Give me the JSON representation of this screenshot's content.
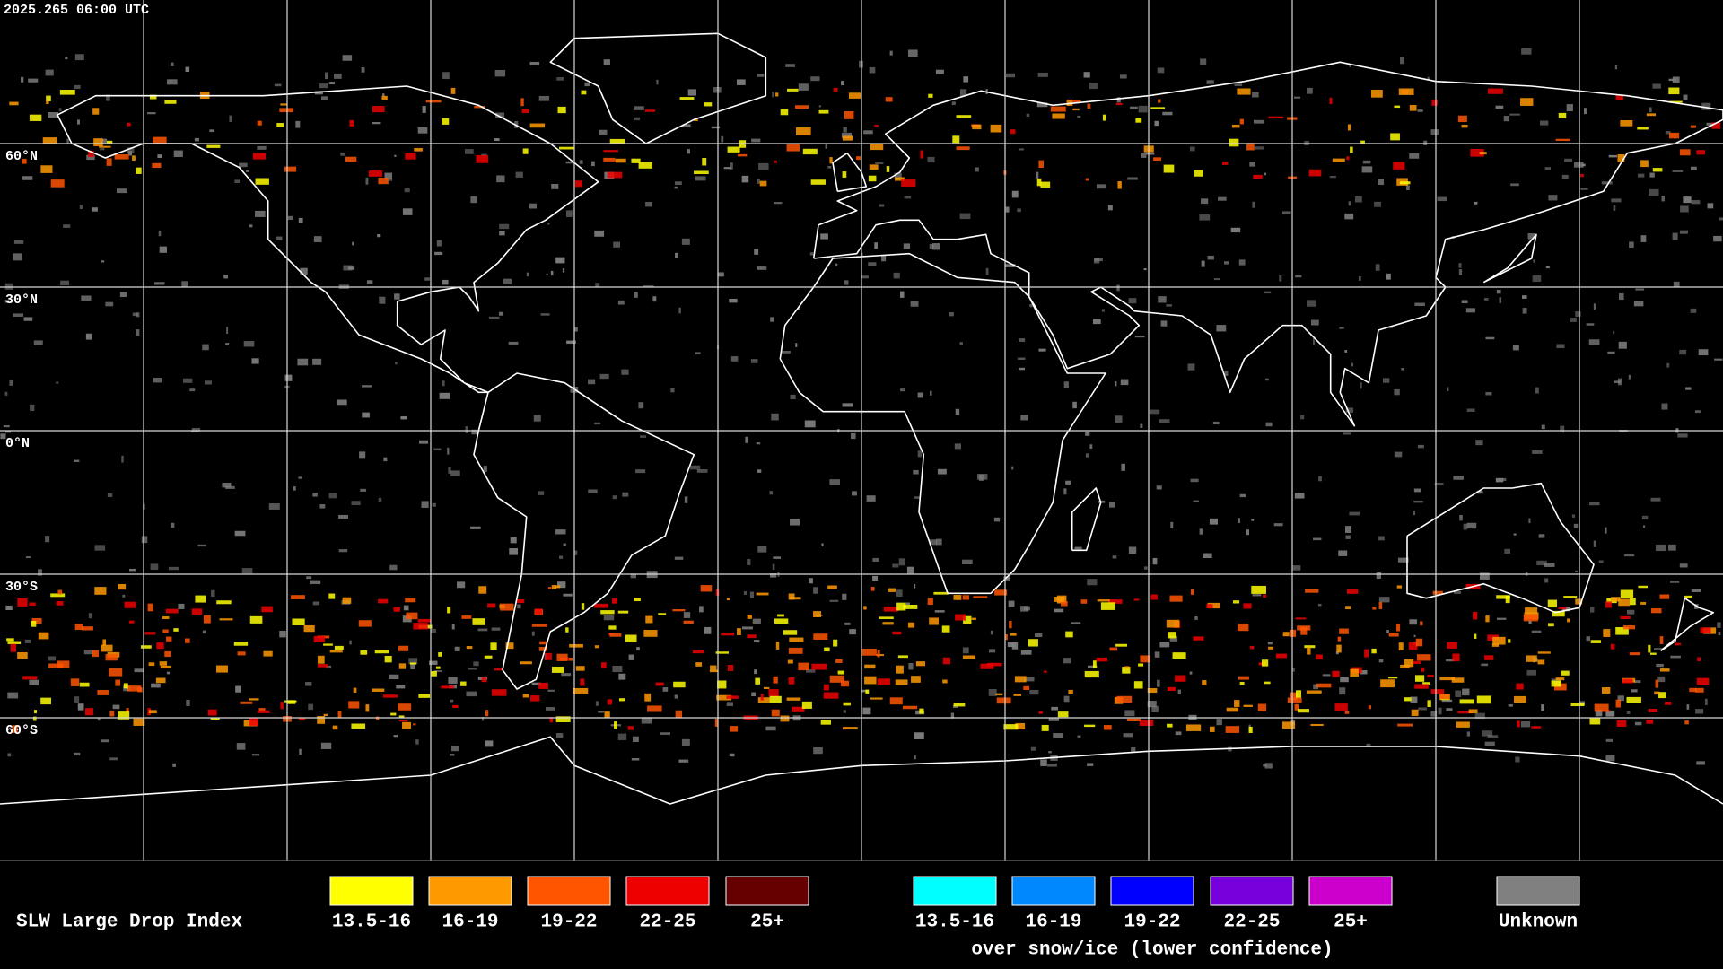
{
  "map": {
    "timestamp": "2025.265 06:00 UTC",
    "latitude_labels": [
      "60°N",
      "30°N",
      "0°N",
      "30°S",
      "60°S"
    ]
  },
  "legend": {
    "title": "SLW Large Drop Index",
    "groups": [
      {
        "items": [
          {
            "label": "13.5-16",
            "color": "#ffff00"
          },
          {
            "label": "16-19",
            "color": "#ff9900"
          },
          {
            "label": "19-22",
            "color": "#ff5500"
          },
          {
            "label": "22-25",
            "color": "#ee0000"
          },
          {
            "label": "25+",
            "color": "#660000"
          }
        ]
      },
      {
        "caption": "over snow/ice (lower confidence)",
        "items": [
          {
            "label": "13.5-16",
            "color": "#00ffff"
          },
          {
            "label": "16-19",
            "color": "#0088ff"
          },
          {
            "label": "19-22",
            "color": "#0000ff"
          },
          {
            "label": "22-25",
            "color": "#7700dd"
          },
          {
            "label": "25+",
            "color": "#cc00cc"
          }
        ]
      }
    ],
    "unknown": {
      "label": "Unknown",
      "color": "#808080"
    }
  }
}
